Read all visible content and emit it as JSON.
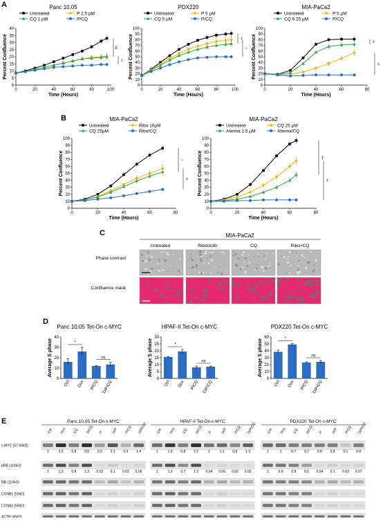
{
  "panels": {
    "A": "A",
    "B": "B",
    "C": "C",
    "D": "D",
    "E": "E"
  },
  "colors": {
    "untreated": "#000000",
    "drug": "#f5b400",
    "cq": "#2eaa4a",
    "combo": "#1f6fd1",
    "mask": "#e6286e"
  },
  "chart_data": [
    {
      "type": "line",
      "title": "Panc 10.05",
      "xlabel": "Time (Hours)",
      "ylabel": "Percent Confluence",
      "xlim": [
        0,
        100
      ],
      "ylim": [
        0,
        40
      ],
      "xticks": [
        0,
        20,
        40,
        60,
        80,
        100
      ],
      "yticks": [
        0,
        5,
        10,
        15,
        20,
        25,
        30,
        35,
        40
      ],
      "x": [
        0,
        10,
        20,
        30,
        40,
        50,
        60,
        70,
        80,
        90,
        96
      ],
      "series": [
        {
          "name": "Untreated",
          "values": [
            8.5,
            10,
            12,
            14,
            16.5,
            19,
            21.5,
            24,
            27,
            31,
            33
          ]
        },
        {
          "name": "P 2.5 µM",
          "values": [
            8.5,
            9.5,
            11,
            12.5,
            14,
            15.5,
            17,
            18.5,
            19.5,
            20,
            20.5
          ]
        },
        {
          "name": "CQ 1 µM",
          "values": [
            8.5,
            9.5,
            11,
            12.5,
            14,
            15.5,
            17,
            18.5,
            19,
            19.5,
            20
          ]
        },
        {
          "name": "P/CQ",
          "values": [
            8.5,
            9.5,
            10.5,
            11.5,
            12.5,
            13,
            13.5,
            14,
            14,
            14.5,
            14.5
          ]
        }
      ],
      "significance": [
        "ns",
        "**"
      ]
    },
    {
      "type": "line",
      "title": "PDX220",
      "xlabel": "Time (Hours)",
      "ylabel": "Percent Confluence",
      "xlim": [
        0,
        100
      ],
      "ylim": [
        0,
        100
      ],
      "xticks": [
        0,
        20,
        40,
        60,
        80,
        100
      ],
      "yticks": [
        0,
        10,
        20,
        30,
        40,
        50,
        60,
        70,
        80,
        90,
        100
      ],
      "x": [
        0,
        10,
        20,
        30,
        40,
        50,
        60,
        70,
        80,
        90,
        96
      ],
      "series": [
        {
          "name": "Untreated",
          "values": [
            17,
            28,
            40,
            52,
            63,
            72,
            79,
            84,
            88,
            90,
            91
          ]
        },
        {
          "name": "P 5 µM",
          "values": [
            17,
            27,
            37,
            47,
            56,
            63,
            69,
            73,
            77,
            79,
            80
          ]
        },
        {
          "name": "CQ 5 µM",
          "values": [
            17,
            26,
            35,
            44,
            52,
            58,
            63,
            67,
            70,
            72,
            73
          ]
        },
        {
          "name": "P/CQ",
          "values": [
            17,
            24,
            30,
            36,
            41,
            45,
            48,
            49,
            50,
            50,
            50
          ]
        }
      ],
      "significance": [
        "**",
        "*"
      ]
    },
    {
      "type": "line",
      "title": "MIA-PaCa2",
      "xlabel": "Time (Hours)",
      "ylabel": "Percent Confluence",
      "xlim": [
        0,
        80
      ],
      "ylim": [
        0,
        100
      ],
      "xticks": [
        0,
        20,
        40,
        60,
        80
      ],
      "yticks": [
        0,
        10,
        20,
        30,
        40,
        50,
        60,
        70,
        80,
        90,
        100
      ],
      "x": [
        0,
        10,
        20,
        30,
        40,
        50,
        60,
        70
      ],
      "series": [
        {
          "name": "Untreated",
          "values": [
            20,
            19,
            26,
            48,
            72,
            80,
            81,
            81
          ]
        },
        {
          "name": "P 5 µM",
          "values": [
            20,
            18,
            19,
            23,
            30,
            38,
            47,
            57
          ]
        },
        {
          "name": "CQ 6.25 µM",
          "values": [
            20,
            19,
            22,
            38,
            58,
            68,
            71,
            72
          ]
        },
        {
          "name": "P/CQ",
          "values": [
            20,
            18,
            16,
            17,
            18,
            18,
            18,
            18
          ]
        }
      ],
      "significance": [
        "**",
        "**"
      ]
    },
    {
      "type": "line",
      "title": "MIA-PaCa2",
      "xlabel": "Time (Hours)",
      "ylabel": "Percent Confluence",
      "xlim": [
        0,
        80
      ],
      "ylim": [
        0,
        100
      ],
      "xticks": [
        0,
        20,
        40,
        60,
        80
      ],
      "yticks": [
        0,
        10,
        20,
        30,
        40,
        50,
        60,
        70,
        80,
        90,
        100
      ],
      "x": [
        0,
        10,
        20,
        30,
        40,
        50,
        60,
        70
      ],
      "series": [
        {
          "name": "Untreated",
          "values": [
            10,
            13,
            20,
            32,
            48,
            63,
            76,
            86
          ]
        },
        {
          "name": "Ribo 10µM",
          "values": [
            10,
            12,
            17,
            25,
            34,
            43,
            50,
            57
          ]
        },
        {
          "name": "CQ 25µM",
          "values": [
            10,
            12,
            16,
            23,
            31,
            39,
            46,
            52
          ]
        },
        {
          "name": "Ribo/CQ",
          "values": [
            10,
            11,
            13,
            15,
            18,
            21,
            24,
            27
          ]
        }
      ],
      "significance": [
        "*",
        "**"
      ]
    },
    {
      "type": "line",
      "title": "MIA-PaCa2",
      "xlabel": "Time (Hours)",
      "ylabel": "Percent Confluence",
      "xlim": [
        0,
        80
      ],
      "ylim": [
        0,
        100
      ],
      "xticks": [
        0,
        20,
        40,
        60,
        80
      ],
      "yticks": [
        0,
        10,
        20,
        30,
        40,
        50,
        60,
        70,
        80,
        90,
        100
      ],
      "x": [
        0,
        10,
        20,
        30,
        40,
        50,
        60,
        65
      ],
      "series": [
        {
          "name": "Untreated",
          "values": [
            10,
            13,
            20,
            34,
            54,
            75,
            92,
            97
          ]
        },
        {
          "name": "CQ 25 µM",
          "values": [
            10,
            12,
            16,
            23,
            33,
            45,
            60,
            68
          ]
        },
        {
          "name": "Abema 2.5 µM",
          "values": [
            10,
            11,
            13,
            17,
            23,
            30,
            40,
            48
          ]
        },
        {
          "name": "Abema/CQ",
          "values": [
            10,
            10,
            11,
            11,
            12,
            12,
            12,
            12
          ]
        }
      ],
      "significance": [
        "***",
        "**"
      ]
    },
    {
      "type": "bar",
      "title": "Panc 10.05 Tet-On c-MYC",
      "ylabel": "Average S phase",
      "ylim": [
        0,
        40
      ],
      "yticks": [
        0,
        10,
        20,
        30,
        40
      ],
      "categories": [
        "Ctrl",
        "Dox",
        "P/CQ",
        "D/P/CQ"
      ],
      "values": [
        16,
        26,
        12,
        13.5
      ],
      "errors": [
        3,
        4,
        0.5,
        2
      ],
      "significance": [
        "*",
        "ns"
      ]
    },
    {
      "type": "bar",
      "title": "HPAF-II Tet-On c-MYC",
      "ylabel": "Average S phase",
      "ylim": [
        0,
        30
      ],
      "yticks": [
        0,
        5,
        10,
        15,
        20,
        25,
        30
      ],
      "categories": [
        "Ctrl",
        "Dox",
        "P/CQ",
        "D/P/CQ"
      ],
      "values": [
        15.5,
        19.5,
        8,
        8.5
      ],
      "errors": [
        0.2,
        1.5,
        1,
        0.5
      ],
      "significance": [
        "*",
        "ns"
      ]
    },
    {
      "type": "bar",
      "title": "PDX220 Tet-On c-MYC",
      "ylabel": "Average S phase",
      "ylim": [
        0,
        60
      ],
      "yticks": [
        0,
        10,
        20,
        30,
        40,
        50,
        60
      ],
      "categories": [
        "Ctrl",
        "Dox",
        "P/CQ",
        "D/P/CQ"
      ],
      "values": [
        38.5,
        49,
        23,
        24
      ],
      "errors": [
        2.5,
        1.5,
        1,
        2
      ],
      "significance": [
        "*",
        "ns"
      ]
    }
  ],
  "microscopy": {
    "title": "MIA-PaCa2",
    "columns": [
      "Untreated",
      "Ribociclib",
      "CQ",
      "Ribo+CQ"
    ],
    "rows": [
      "Phase contrast",
      "Confluence mask"
    ]
  },
  "blot": {
    "groups": [
      "Panc 10.05 Tet-On c-MYC",
      "HPAF-II Tet-On c-MYC",
      "PDX220 Tet-On c-MYC"
    ],
    "lanes": [
      "Ctrl",
      "Dox",
      "CQ",
      "D/CQ",
      "P",
      "D/P",
      "P/CQ",
      "D/P/CQ"
    ],
    "rows": [
      {
        "label": "c-MYC (57-65kD)",
        "quant": [
          [
            "1",
            "3.2",
            "0.8",
            "3.5",
            "0.5",
            "2.1",
            "0.3",
            "1.4"
          ],
          [
            "1",
            "1.9",
            "0.8",
            "2.2",
            "1",
            "1.1",
            "0.8",
            "1.3"
          ],
          [
            "1",
            "1",
            "0.7",
            "0.7",
            "0.8",
            "0.8",
            "0.1",
            "0.8"
          ]
        ]
      },
      {
        "label": "pRB (110kD)",
        "quant": [
          [
            "1",
            "1.3",
            "0.8",
            "1.3",
            "0.03",
            "0.1",
            "0.02",
            "0.06"
          ],
          [
            "1",
            "1.3",
            "0.7",
            "1.3",
            "0.04",
            "0.06",
            "0.02",
            "0.02"
          ],
          [
            "1",
            "0.9",
            "0.8",
            "0.5",
            "0.04",
            "0.1",
            "0.03",
            "0.07"
          ]
        ]
      },
      {
        "label": "RB (110kD)"
      },
      {
        "label": "CCNB1 (55kD)"
      },
      {
        "label": "CCNA2 (55kD)"
      },
      {
        "label": "ACTB (45kD)"
      }
    ]
  }
}
